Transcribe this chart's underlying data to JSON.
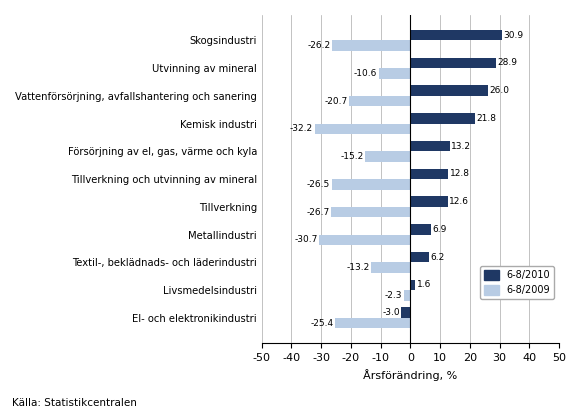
{
  "categories": [
    "El- och elektronikindustri",
    "Livsmedelsindustri",
    "Textil-, beklädnads- och läderindustri",
    "Metallindustri",
    "Tillverkning",
    "Tillverkning och utvinning av mineral",
    "Försörjning av el, gas, värme och kyla",
    "Kemisk industri",
    "Vattenförsörjning, avfallshantering och sanering",
    "Utvinning av mineral",
    "Skogsindustri"
  ],
  "values_2010": [
    -3.0,
    1.6,
    6.2,
    6.9,
    12.6,
    12.8,
    13.2,
    21.8,
    26.0,
    28.9,
    30.9
  ],
  "values_2009": [
    -25.4,
    -2.3,
    -13.2,
    -30.7,
    -26.7,
    -26.5,
    -15.2,
    -32.2,
    -20.7,
    -10.6,
    -26.2
  ],
  "color_2010": "#1F3864",
  "color_2009": "#B8CCE4",
  "legend_2010": "6-8/2010",
  "legend_2009": "6-8/2009",
  "xlabel": "Årsförändring, %",
  "xlim": [
    -50,
    50
  ],
  "xticks": [
    -50,
    -40,
    -30,
    -20,
    -10,
    0,
    10,
    20,
    30,
    40,
    50
  ],
  "source": "Källa: Statistikcentralen",
  "background_color": "#FFFFFF",
  "plot_bg_color": "#FFFFFF"
}
